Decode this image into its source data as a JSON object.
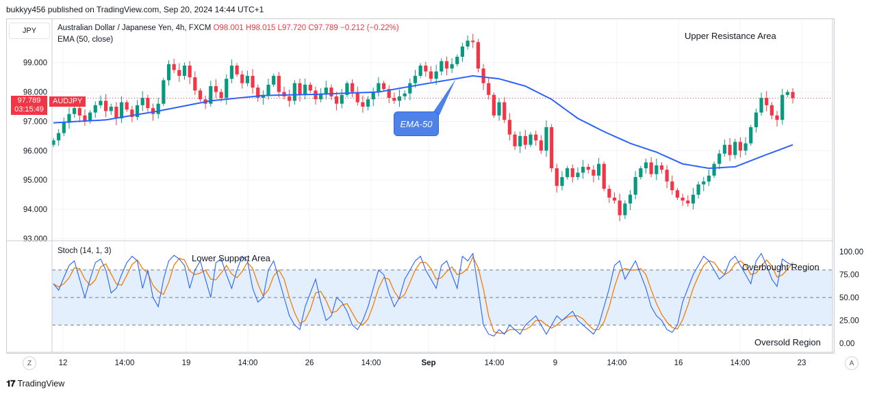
{
  "header": {
    "published": "bukkyy456 published on TradingView.com, Sep 20, 2024 14:44 UTC+1"
  },
  "toolbar": {
    "currency": "JPY"
  },
  "legend": {
    "title": "Australian Dollar / Japanese Yen, 4h, FXCM",
    "ohlc": "O98.001  H98.015  L97.720  C97.789  −0.212 (−0.22%)",
    "ema": "EMA (50, close)"
  },
  "price_tag": {
    "price": "97.789",
    "countdown": "03:15:49",
    "symbol": "AUDJPY"
  },
  "annotations": {
    "upper_resistance": "Upper Resistance Area",
    "lower_support": "Lower Support Area",
    "overbought": "Overbought Region",
    "oversold": "Oversold Region",
    "ema_callout": "EMA-50"
  },
  "stoch_legend": "Stoch (14, 1, 3)",
  "footer": {
    "brand": "TradingView"
  },
  "buttons": {
    "left": "Z",
    "right": "A"
  },
  "colors": {
    "up": "#089981",
    "down": "#f23645",
    "ema": "#2962ff",
    "k": "#2962ff",
    "d": "#f57c00",
    "band": "#e3effd"
  },
  "chart_data": [
    {
      "type": "candlestick",
      "title": "Australian Dollar / Japanese Yen, 4h, FXCM",
      "price_ticks": [
        "99.000",
        "98.000",
        "97.000",
        "96.000",
        "95.000",
        "94.000",
        "93.000"
      ],
      "ylim": [
        93.0,
        99.9
      ],
      "x_ticks": [
        "12",
        "14:00",
        "19",
        "14:00",
        "26",
        "14:00",
        "Sep",
        "14:00",
        "9",
        "14:00",
        "16",
        "14:00",
        "23"
      ],
      "closes": [
        96.35,
        96.6,
        96.95,
        97.25,
        97.45,
        97.2,
        97.0,
        97.3,
        97.55,
        97.7,
        97.35,
        97.5,
        97.1,
        97.65,
        97.4,
        97.15,
        97.55,
        97.8,
        97.45,
        97.25,
        97.6,
        98.4,
        98.95,
        98.75,
        98.55,
        98.9,
        98.5,
        98.05,
        97.75,
        97.6,
        98.2,
        98.0,
        97.8,
        98.45,
        98.9,
        98.6,
        98.3,
        98.55,
        98.15,
        97.8,
        97.9,
        98.25,
        98.55,
        98.0,
        97.85,
        97.7,
        98.3,
        97.9,
        98.25,
        98.05,
        97.75,
        97.95,
        98.15,
        97.85,
        97.6,
        97.9,
        98.3,
        98.0,
        97.65,
        97.5,
        97.75,
        98.0,
        98.3,
        98.1,
        97.8,
        97.7,
        97.85,
        97.95,
        98.3,
        98.55,
        98.9,
        98.7,
        98.45,
        98.7,
        99.05,
        98.8,
        98.95,
        99.2,
        99.55,
        99.75,
        99.7,
        98.8,
        98.3,
        97.9,
        97.2,
        97.65,
        97.05,
        96.55,
        96.15,
        96.5,
        96.2,
        96.55,
        96.35,
        96.0,
        96.8,
        95.4,
        94.8,
        95.1,
        95.4,
        95.1,
        95.25,
        95.45,
        95.35,
        95.15,
        95.55,
        94.7,
        94.4,
        94.3,
        93.8,
        94.2,
        94.5,
        95.1,
        95.4,
        95.6,
        95.2,
        95.5,
        95.35,
        94.95,
        94.65,
        94.4,
        94.3,
        94.2,
        94.5,
        94.85,
        94.95,
        95.15,
        95.55,
        95.9,
        96.2,
        95.85,
        96.3,
        96.0,
        96.25,
        96.8,
        97.3,
        97.8,
        97.55,
        97.2,
        97.05,
        97.9,
        98.0,
        97.79
      ]
    },
    {
      "type": "line",
      "series": [
        {
          "name": "EMA (50, close)"
        }
      ],
      "ema_anchor_times": [
        0,
        10,
        20,
        30,
        40,
        50,
        62,
        70,
        80,
        85,
        90,
        95,
        100,
        105,
        110,
        115,
        120,
        125,
        130,
        135,
        141
      ],
      "ema_anchor_values": [
        96.95,
        97.05,
        97.35,
        97.7,
        97.88,
        97.92,
        98.0,
        98.25,
        98.55,
        98.45,
        98.2,
        97.75,
        97.1,
        96.65,
        96.25,
        95.95,
        95.55,
        95.4,
        95.45,
        95.8,
        96.2
      ]
    },
    {
      "type": "line",
      "title": "Stoch (14, 1, 3)",
      "stoch_ticks": [
        "100.00",
        "75.00",
        "50.00",
        "25.00",
        "0.00"
      ],
      "levels": [
        80,
        50,
        20
      ],
      "k_values": [
        65,
        58,
        72,
        85,
        90,
        70,
        50,
        70,
        88,
        92,
        80,
        55,
        60,
        75,
        88,
        95,
        90,
        60,
        80,
        50,
        40,
        70,
        90,
        96,
        92,
        85,
        60,
        80,
        90,
        70,
        50,
        88,
        92,
        75,
        60,
        80,
        95,
        90,
        60,
        45,
        50,
        80,
        90,
        70,
        50,
        30,
        20,
        15,
        40,
        55,
        70,
        45,
        25,
        30,
        50,
        45,
        35,
        20,
        15,
        25,
        40,
        60,
        80,
        75,
        55,
        40,
        50,
        70,
        80,
        90,
        95,
        80,
        70,
        60,
        85,
        90,
        75,
        60,
        95,
        90,
        98,
        60,
        20,
        10,
        8,
        15,
        10,
        20,
        15,
        10,
        20,
        25,
        30,
        20,
        10,
        20,
        30,
        25,
        30,
        35,
        25,
        20,
        15,
        10,
        20,
        40,
        60,
        85,
        90,
        70,
        80,
        90,
        75,
        60,
        40,
        30,
        25,
        15,
        12,
        20,
        45,
        60,
        75,
        85,
        95,
        90,
        80,
        70,
        75,
        90,
        95,
        85,
        75,
        65,
        90,
        98,
        85,
        70,
        62,
        92,
        88,
        85
      ]
    }
  ]
}
